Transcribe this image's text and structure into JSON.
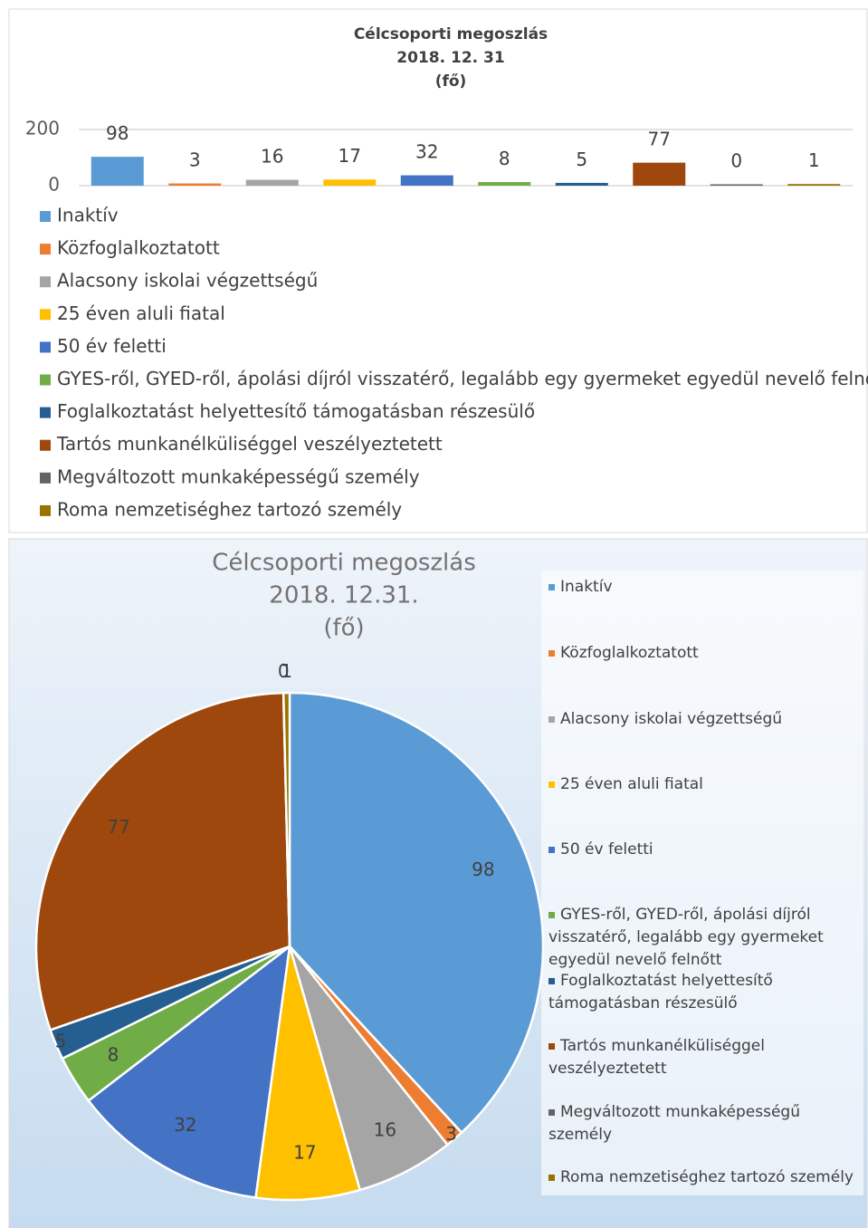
{
  "chart_data": [
    {
      "type": "bar",
      "title": [
        "Célcsoporti megoszlás",
        "2018. 12. 31",
        "(fő)"
      ],
      "categories": [
        "Inaktív",
        "Közfoglalkoztatott",
        "Alacsony iskolai végzettségű",
        "25 éven aluli fiatal",
        "50 év feletti",
        "GYES-ről, GYED-ről, ápolási díjról visszatérő, legalább egy gyermeket egyedül nevelő felnőtt",
        "Foglalkoztatást helyettesítő támogatásban részesülő",
        "Tartós munkanélküliséggel veszélyeztetett",
        "Megváltozott munkaképességű személy",
        "Roma nemzetiséghez tartozó személy"
      ],
      "colors": [
        "#5b9bd5",
        "#ed7d31",
        "#a5a5a5",
        "#ffc000",
        "#4472c4",
        "#70ad47",
        "#255e91",
        "#9e480e",
        "#636363",
        "#997300"
      ],
      "values": [
        98,
        3,
        16,
        17,
        32,
        8,
        5,
        77,
        0,
        1
      ],
      "ylim": [
        0,
        200
      ],
      "yticks": [
        0,
        200
      ],
      "grid": true,
      "legend": "bottom"
    },
    {
      "type": "pie",
      "title": [
        "Célcsoporti megoszlás",
        "2018. 12.31.",
        "(fő)"
      ],
      "categories": [
        "Inaktív",
        "Közfoglalkoztatott",
        "Alacsony iskolai végzettségű",
        "25 éven aluli fiatal",
        "50 év feletti",
        "GYES-ről, GYED-ről, ápolási díjról visszatérő, legalább egy gyermeket egyedül nevelő felnőtt",
        "Foglalkoztatást helyettesítő támogatásban részesülő",
        "Tartós munkanélküliséggel veszélyeztetett",
        "Megváltozott munkaképességű személy",
        "Roma nemzetiséghez tartozó személy"
      ],
      "colors": [
        "#5b9bd5",
        "#ed7d31",
        "#a5a5a5",
        "#ffc000",
        "#4472c4",
        "#70ad47",
        "#255e91",
        "#9e480e",
        "#636363",
        "#997300"
      ],
      "values": [
        98,
        3,
        16,
        17,
        32,
        8,
        5,
        77,
        0,
        1
      ],
      "legend": "right"
    }
  ]
}
